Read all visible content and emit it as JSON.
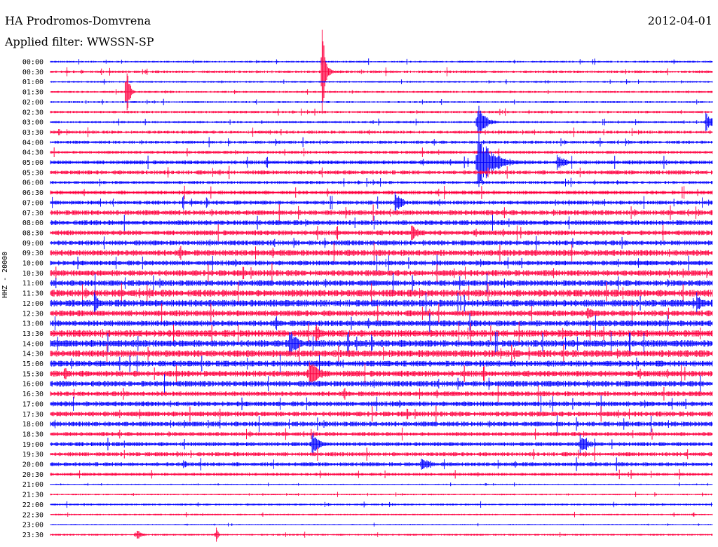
{
  "header": {
    "station": "HA Prodromos-Domvrena",
    "date": "2012-04-01",
    "filter": "Applied filter: WWSSN-SP"
  },
  "chart_data": {
    "type": "line",
    "title": "HA Prodromos-Domvrena",
    "ylabel": "HHZ - 20000",
    "colors": [
      "#0000ff",
      "#ff0040"
    ],
    "rows": [
      "00:00",
      "00:30",
      "01:00",
      "01:30",
      "02:00",
      "02:30",
      "03:00",
      "03:30",
      "04:00",
      "04:30",
      "05:00",
      "05:30",
      "06:00",
      "06:30",
      "07:00",
      "07:30",
      "08:00",
      "08:30",
      "09:00",
      "09:30",
      "10:00",
      "10:30",
      "11:00",
      "11:30",
      "12:00",
      "12:30",
      "13:00",
      "13:30",
      "14:00",
      "14:30",
      "15:00",
      "15:30",
      "16:00",
      "16:30",
      "17:00",
      "17:30",
      "18:00",
      "18:30",
      "19:00",
      "19:30",
      "20:00",
      "20:30",
      "21:00",
      "21:30",
      "22:00",
      "22:30",
      "23:00",
      "23:30"
    ],
    "noise_levels": [
      1,
      1.3,
      0.8,
      1,
      1,
      1.2,
      1,
      1.5,
      1.5,
      1.5,
      2,
      2,
      1.5,
      2,
      2,
      2.5,
      2.5,
      2.5,
      2.5,
      3,
      2.5,
      3,
      3,
      3.5,
      3.5,
      3,
      3,
      3.5,
      3.5,
      3.5,
      3,
      3,
      3,
      2.5,
      2.5,
      2.5,
      2.5,
      2,
      2,
      2,
      2,
      1.5,
      0.6,
      0.8,
      1,
      0.8,
      0.6,
      1
    ],
    "events": [
      {
        "row": 1,
        "x": 0.41,
        "amp": 70,
        "dur": 3
      },
      {
        "row": 3,
        "x": 0.115,
        "amp": 60,
        "dur": 2
      },
      {
        "row": 6,
        "x": 0.645,
        "amp": 30,
        "dur": 6
      },
      {
        "row": 6,
        "x": 0.99,
        "amp": 14,
        "dur": 8
      },
      {
        "row": 10,
        "x": 0.645,
        "amp": 40,
        "dur": 14
      },
      {
        "row": 10,
        "x": 0.765,
        "amp": 12,
        "dur": 8
      },
      {
        "row": 14,
        "x": 0.52,
        "amp": 18,
        "dur": 6
      },
      {
        "row": 17,
        "x": 0.545,
        "amp": 12,
        "dur": 8
      },
      {
        "row": 24,
        "x": 0.065,
        "amp": 18,
        "dur": 6
      },
      {
        "row": 24,
        "x": 0.975,
        "amp": 18,
        "dur": 6
      },
      {
        "row": 25,
        "x": 0.81,
        "amp": 12,
        "dur": 6
      },
      {
        "row": 28,
        "x": 0.36,
        "amp": 22,
        "dur": 8
      },
      {
        "row": 27,
        "x": 0.4,
        "amp": 16,
        "dur": 6
      },
      {
        "row": 31,
        "x": 0.39,
        "amp": 26,
        "dur": 8
      },
      {
        "row": 31,
        "x": 0.02,
        "amp": 12,
        "dur": 6
      },
      {
        "row": 38,
        "x": 0.395,
        "amp": 20,
        "dur": 6
      },
      {
        "row": 38,
        "x": 0.8,
        "amp": 14,
        "dur": 8
      },
      {
        "row": 40,
        "x": 0.56,
        "amp": 14,
        "dur": 6
      },
      {
        "row": 40,
        "x": 0.2,
        "amp": 8,
        "dur": 4
      },
      {
        "row": 47,
        "x": 0.13,
        "amp": 10,
        "dur": 4
      },
      {
        "row": 47,
        "x": 0.25,
        "amp": 14,
        "dur": 2
      }
    ]
  }
}
